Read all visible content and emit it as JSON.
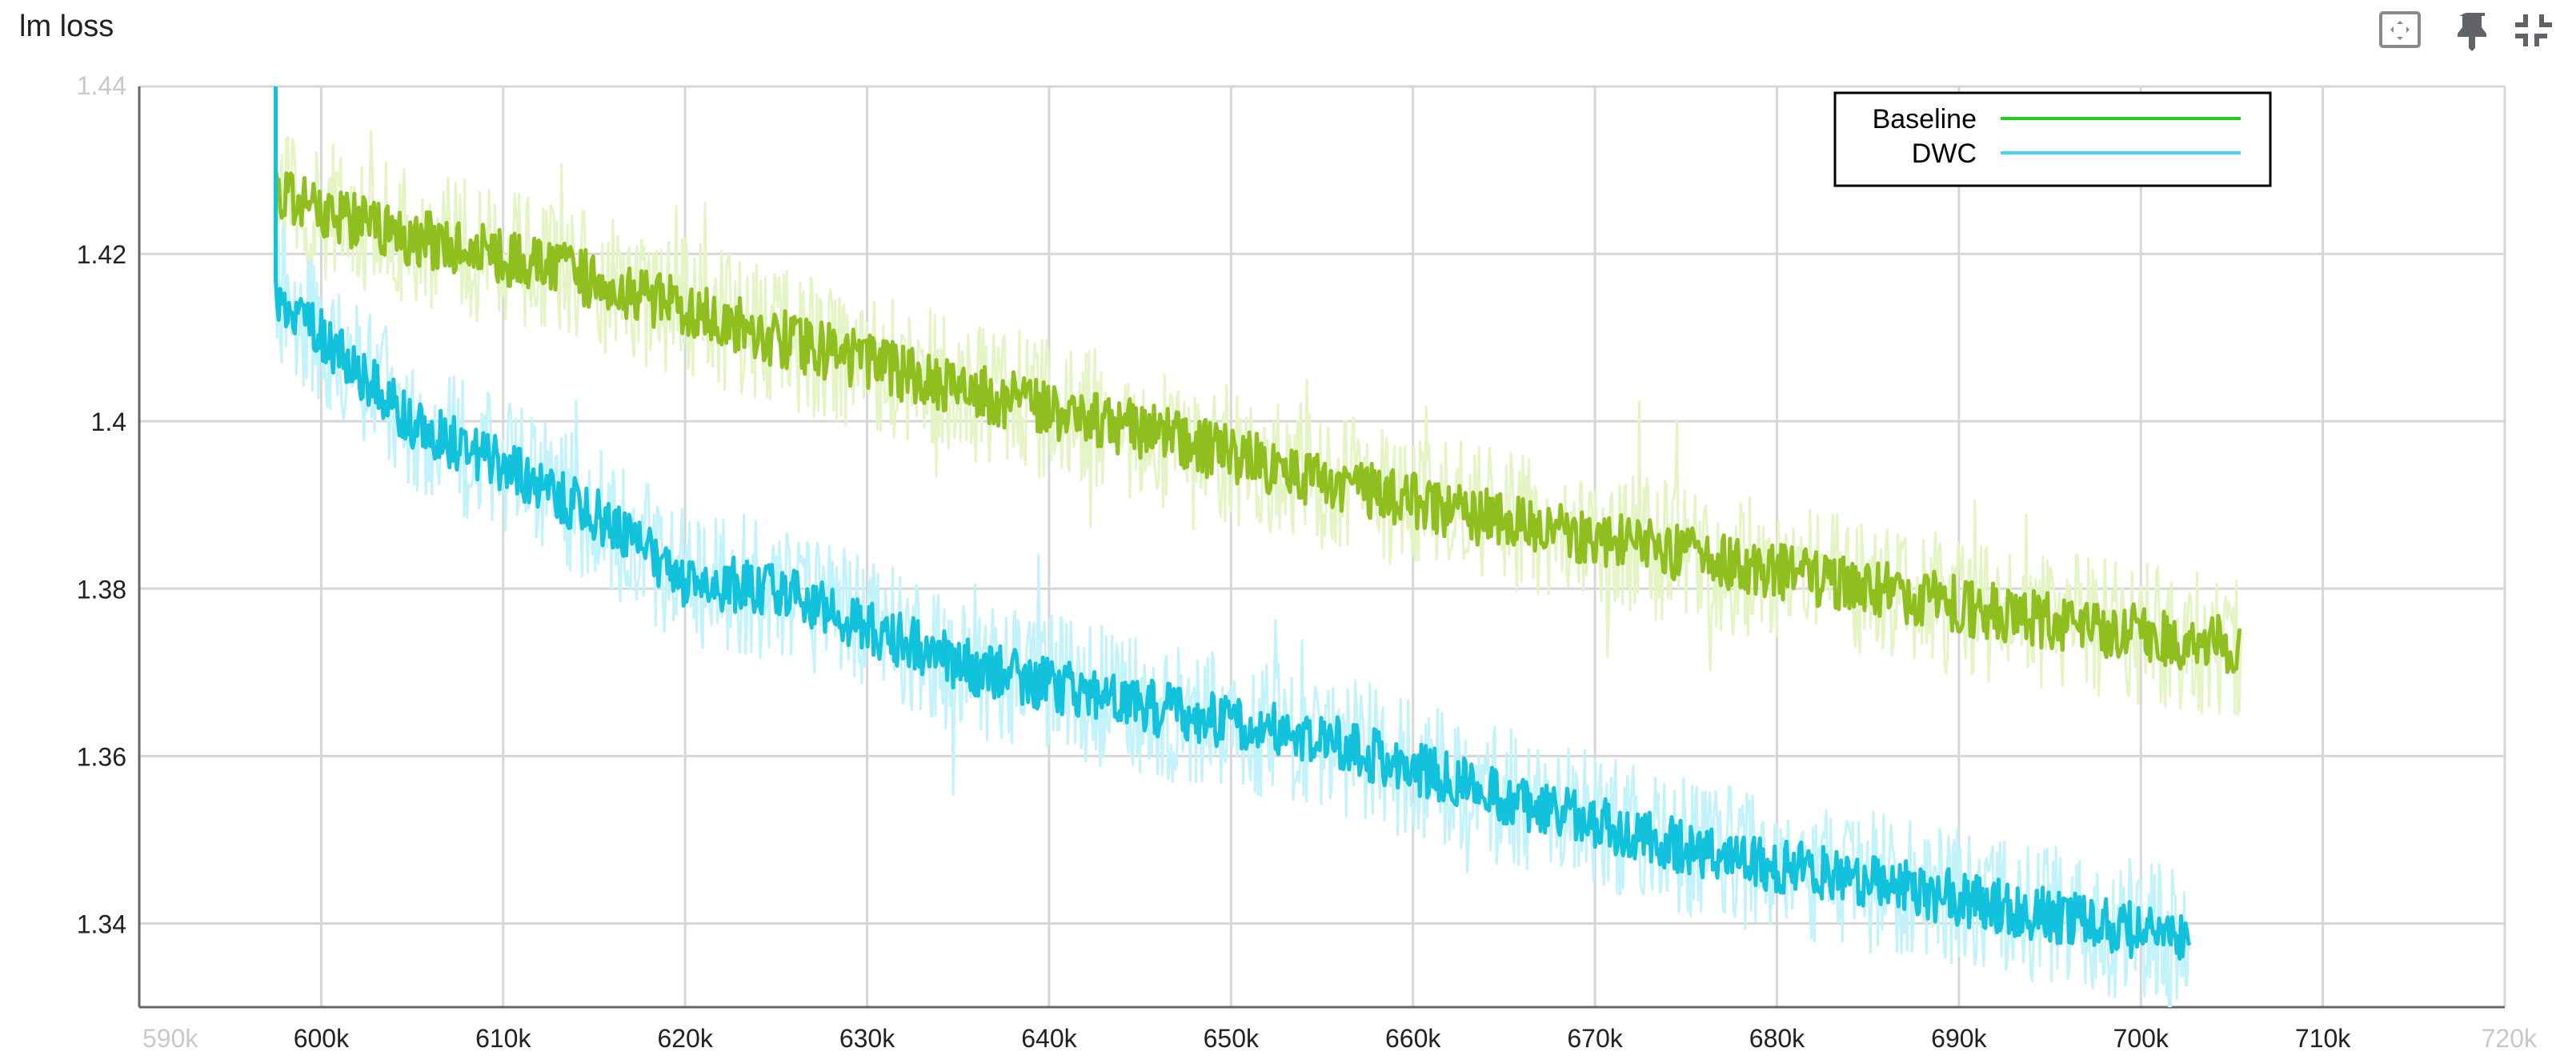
{
  "card": {
    "title": "lm loss"
  },
  "toolbar": {
    "icons": [
      "fit-to-data-icon",
      "pin-icon",
      "collapse-icon",
      "more-vert-icon"
    ]
  },
  "colors": {
    "baseline_smoothed": "#8fbf1f",
    "baseline_raw": "#e4f4c4",
    "dwc_smoothed": "#12c1dc",
    "dwc_raw": "#c2f2fa",
    "legend_baseline": "#22cc22",
    "legend_dwc": "#44d4ec",
    "grid": "#d6d6d6"
  },
  "chart_data": {
    "type": "line",
    "title": "lm loss",
    "xlabel": "",
    "ylabel": "",
    "xlim": [
      590000,
      720000
    ],
    "ylim": [
      1.33,
      1.44
    ],
    "x_ticks": [
      "590k",
      "600k",
      "610k",
      "620k",
      "630k",
      "640k",
      "650k",
      "660k",
      "670k",
      "680k",
      "690k",
      "700k",
      "710k",
      "720k"
    ],
    "y_ticks": [
      "1.34",
      "1.36",
      "1.38",
      "1.4",
      "1.42",
      "1.44"
    ],
    "grid": true,
    "legend_position": "top-right",
    "series": [
      {
        "name": "Baseline",
        "x_start": 597500,
        "x_end": 705500,
        "trend_x": [
          597500,
          605000,
          615000,
          625000,
          635000,
          645000,
          655000,
          665000,
          675000,
          685000,
          695000,
          705500
        ],
        "trend_y": [
          1.427,
          1.422,
          1.417,
          1.41,
          1.404,
          1.399,
          1.393,
          1.388,
          1.384,
          1.38,
          1.376,
          1.373
        ]
      },
      {
        "name": "DWC",
        "x_start": 597500,
        "x_end": 702700,
        "trend_x": [
          597500,
          605000,
          615000,
          620000,
          625000,
          635000,
          645000,
          655000,
          665000,
          675000,
          685000,
          695000,
          702700
        ],
        "trend_y": [
          1.415,
          1.4,
          1.389,
          1.381,
          1.38,
          1.371,
          1.366,
          1.362,
          1.355,
          1.349,
          1.345,
          1.341,
          1.338
        ]
      }
    ]
  }
}
